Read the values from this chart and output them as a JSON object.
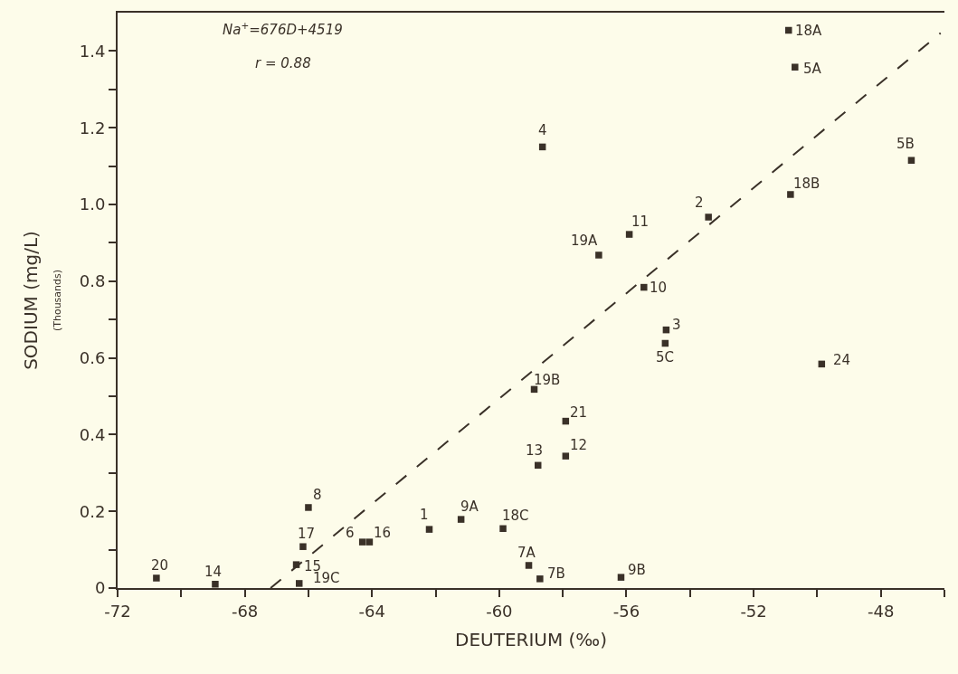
{
  "chart_data": {
    "type": "scatter",
    "xlabel": "DEUTERIUM (‰)",
    "ylabel": "SODIUM (mg/L)\n(Thousands)",
    "xlim": [
      -72,
      -46
    ],
    "ylim": [
      0,
      1.5
    ],
    "xticks": [
      -72,
      {
        "value": -70,
        "label": null
      },
      -68,
      {
        "value": -66,
        "label": null
      },
      -64,
      {
        "value": -62,
        "label": null
      },
      -60,
      {
        "value": -58,
        "label": null
      },
      -56,
      {
        "value": -54,
        "label": null
      },
      -52,
      {
        "value": -50,
        "label": null
      },
      -48,
      {
        "value": -46,
        "label": null
      }
    ],
    "yticks": [
      0,
      {
        "value": 0.1,
        "label": null
      },
      0.2,
      {
        "value": 0.3,
        "label": null
      },
      0.4,
      {
        "value": 0.5,
        "label": null
      },
      0.6,
      {
        "value": 0.7,
        "label": null
      },
      0.8,
      {
        "value": 0.9,
        "label": null
      },
      {
        "value": 1.0,
        "label": "1.0"
      },
      {
        "value": 1.1,
        "label": null
      },
      1.2,
      {
        "value": 1.3,
        "label": null
      },
      1.4
    ],
    "grid": false,
    "series": [
      {
        "color": "#3a3128",
        "marker": "square",
        "x": [
          -70.78,
          -68.93,
          -66.0,
          -66.17,
          -66.38,
          -66.29,
          -64.3,
          -64.08,
          -62.2,
          -61.2,
          -59.88,
          -59.07,
          -58.72,
          -56.17,
          -58.78,
          -57.91,
          -57.91,
          -58.9,
          -49.86,
          -58.64,
          -56.87,
          -55.91,
          -55.45,
          -53.42,
          -54.75,
          -54.78,
          -50.84,
          -47.04,
          -50.9,
          -50.7
        ],
        "values": [
          0.026,
          0.01,
          0.21,
          0.108,
          0.061,
          0.012,
          0.12,
          0.12,
          0.153,
          0.179,
          0.155,
          0.059,
          0.024,
          0.028,
          0.32,
          0.344,
          0.435,
          0.518,
          0.584,
          1.15,
          0.868,
          0.922,
          0.784,
          0.967,
          0.673,
          0.638,
          1.026,
          1.115,
          1.454,
          1.358
        ]
      },
      {
        "type": "line",
        "color": "#3a3128",
        "line_style": "dashed",
        "marker": "none",
        "x": [
          -67.19,
          -46.12
        ],
        "values": [
          0,
          1.447
        ]
      }
    ],
    "annotations": [
      "Na$^{+}$=676D+4519",
      "r = 0.88",
      {
        "text": "20",
        "x": -70.78,
        "y": 0.026
      },
      {
        "text": "14",
        "x": -68.93,
        "y": 0.01
      },
      {
        "text": "8",
        "x": -66.0,
        "y": 0.21
      },
      {
        "text": "17",
        "x": -66.17,
        "y": 0.108
      },
      {
        "text": "15",
        "x": -66.38,
        "y": 0.061
      },
      {
        "text": "19C",
        "x": -66.29,
        "y": 0.012
      },
      {
        "text": "6",
        "x": -64.3,
        "y": 0.12
      },
      {
        "text": "16",
        "x": -64.08,
        "y": 0.12
      },
      {
        "text": "1",
        "x": -62.2,
        "y": 0.153
      },
      {
        "text": "9A",
        "x": -61.2,
        "y": 0.179
      },
      {
        "text": "18C",
        "x": -59.88,
        "y": 0.155
      },
      {
        "text": "7A",
        "x": -59.07,
        "y": 0.059
      },
      {
        "text": "7B",
        "x": -58.72,
        "y": 0.024
      },
      {
        "text": "9B",
        "x": -56.17,
        "y": 0.028
      },
      {
        "text": "13",
        "x": -58.78,
        "y": 0.32
      },
      {
        "text": "12",
        "x": -57.91,
        "y": 0.344
      },
      {
        "text": "21",
        "x": -57.91,
        "y": 0.435
      },
      {
        "text": "19B",
        "x": -58.9,
        "y": 0.518
      },
      {
        "text": "24",
        "x": -49.86,
        "y": 0.584
      },
      {
        "text": "4",
        "x": -58.64,
        "y": 1.15
      },
      {
        "text": "19A",
        "x": -56.87,
        "y": 0.868
      },
      {
        "text": "11",
        "x": -55.91,
        "y": 0.922
      },
      {
        "text": "10",
        "x": -55.45,
        "y": 0.784
      },
      {
        "text": "2",
        "x": -53.42,
        "y": 0.967
      },
      {
        "text": "3",
        "x": -54.75,
        "y": 0.673
      },
      {
        "text": "5C",
        "x": -54.78,
        "y": 0.638
      },
      {
        "text": "18B",
        "x": -50.84,
        "y": 1.026
      },
      {
        "text": "5B",
        "x": -47.04,
        "y": 1.115
      },
      {
        "text": "18A",
        "x": -50.9,
        "y": 1.454
      },
      {
        "text": "5A",
        "x": -50.7,
        "y": 1.358
      }
    ]
  }
}
